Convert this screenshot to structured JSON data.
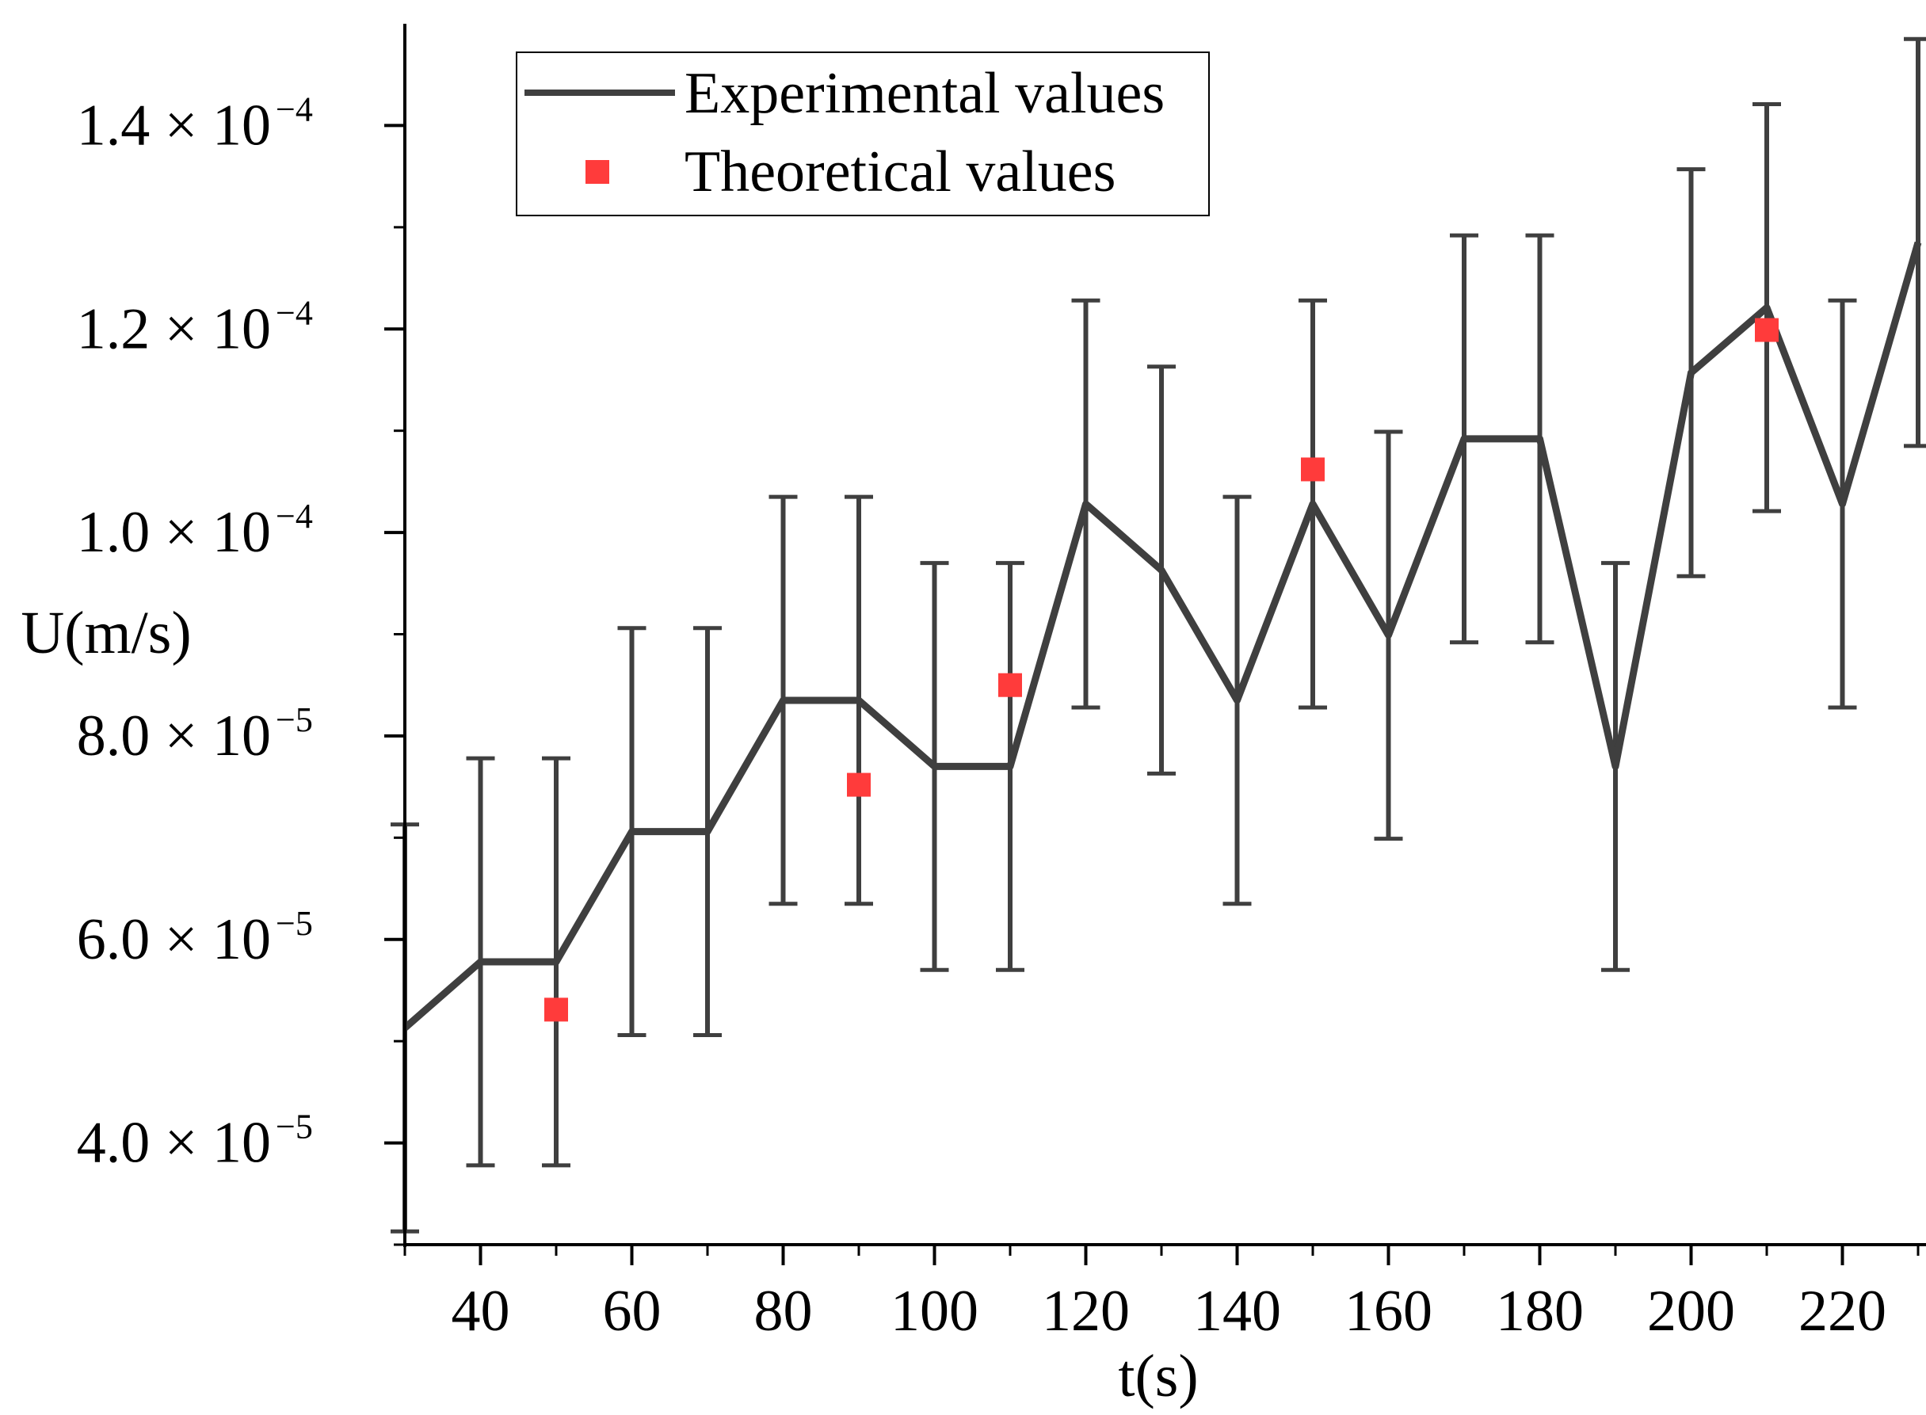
{
  "chart_data": {
    "type": "line",
    "title": "",
    "xlabel": "t(s)",
    "ylabel": "U(m/s)",
    "xlim": [
      30,
      230
    ],
    "ylim": [
      3e-05,
      0.00015
    ],
    "x_ticks": [
      40,
      60,
      80,
      100,
      120,
      140,
      160,
      180,
      200,
      220
    ],
    "x_tick_labels": [
      "40",
      "60",
      "80",
      "100",
      "120",
      "140",
      "160",
      "180",
      "200",
      "220"
    ],
    "y_ticks": [
      4e-05,
      6e-05,
      8e-05,
      0.0001,
      0.00012,
      0.00014
    ],
    "y_tick_mantissas": [
      "4.0",
      "6.0",
      "8.0",
      "1.0",
      "1.2",
      "1.4"
    ],
    "y_tick_times": "×",
    "y_tick_base": "10",
    "y_tick_exponents": [
      "−5",
      "−5",
      "−5",
      "−4",
      "−4",
      "−4"
    ],
    "grid": false,
    "legend_position": "top-left",
    "series": [
      {
        "name": "Experimental values",
        "kind": "line-with-errorbars",
        "color": "#3f3f3f",
        "x": [
          30,
          40,
          50,
          60,
          70,
          80,
          90,
          100,
          110,
          120,
          130,
          140,
          150,
          160,
          170,
          180,
          190,
          200,
          210,
          220,
          230
        ],
        "y": [
          5.13e-05,
          5.78e-05,
          5.78e-05,
          7.06e-05,
          7.06e-05,
          8.35e-05,
          8.35e-05,
          7.7e-05,
          7.7e-05,
          0.0001028,
          9.63e-05,
          8.35e-05,
          0.0001028,
          8.99e-05,
          0.0001092,
          0.0001092,
          7.7e-05,
          0.0001157,
          0.0001221,
          0.0001028,
          0.0001285
        ],
        "error": [
          2e-05,
          2e-05,
          2e-05,
          2e-05,
          2e-05,
          2e-05,
          2e-05,
          2e-05,
          2e-05,
          2e-05,
          2e-05,
          2e-05,
          2e-05,
          2e-05,
          2e-05,
          2e-05,
          2e-05,
          2e-05,
          2e-05,
          2e-05,
          2e-05
        ]
      },
      {
        "name": "Theoretical values",
        "kind": "scatter",
        "marker": "square",
        "color": "#ff3b3b",
        "x": [
          50,
          90,
          110,
          150,
          210
        ],
        "y": [
          5.31e-05,
          7.52e-05,
          8.5e-05,
          0.0001062,
          0.0001199
        ]
      }
    ]
  }
}
